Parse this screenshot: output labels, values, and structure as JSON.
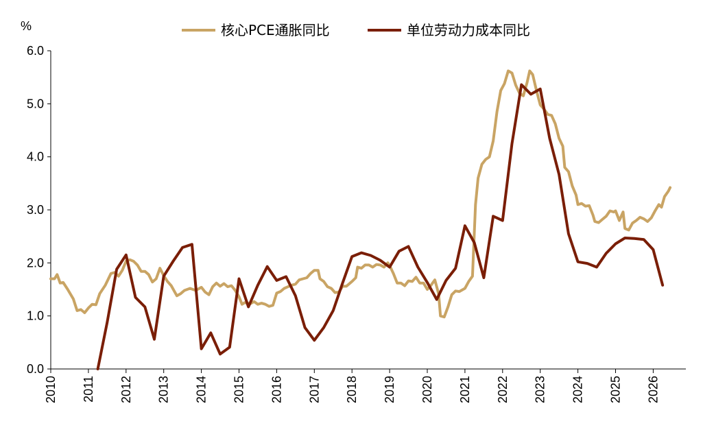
{
  "chart_data": {
    "type": "line",
    "title": "",
    "xlabel": "",
    "ylabel": "%",
    "ylim": [
      0,
      6
    ],
    "xlim": [
      2010,
      2026.45
    ],
    "y_ticks": [
      "0.0",
      "1.0",
      "2.0",
      "3.0",
      "4.0",
      "5.0",
      "6.0"
    ],
    "x_ticks": [
      "2010",
      "2011",
      "2012",
      "2013",
      "2014",
      "2015",
      "2016",
      "2017",
      "2018",
      "2019",
      "2020",
      "2021",
      "2022",
      "2023",
      "2024",
      "2025",
      "2026"
    ],
    "grid": false,
    "legend_position": "top-center",
    "series": [
      {
        "name": "核心PCE通胀同比",
        "color": "#c9a464",
        "points": [
          [
            2010.0,
            1.7
          ],
          [
            2010.1,
            1.7
          ],
          [
            2010.17,
            1.78
          ],
          [
            2010.25,
            1.62
          ],
          [
            2010.33,
            1.63
          ],
          [
            2010.45,
            1.5
          ],
          [
            2010.6,
            1.32
          ],
          [
            2010.7,
            1.1
          ],
          [
            2010.8,
            1.12
          ],
          [
            2010.9,
            1.06
          ],
          [
            2011.0,
            1.15
          ],
          [
            2011.1,
            1.22
          ],
          [
            2011.2,
            1.21
          ],
          [
            2011.3,
            1.42
          ],
          [
            2011.45,
            1.58
          ],
          [
            2011.6,
            1.8
          ],
          [
            2011.7,
            1.82
          ],
          [
            2011.8,
            1.75
          ],
          [
            2011.9,
            1.86
          ],
          [
            2012.0,
            2.03
          ],
          [
            2012.1,
            2.06
          ],
          [
            2012.2,
            2.03
          ],
          [
            2012.3,
            1.96
          ],
          [
            2012.4,
            1.84
          ],
          [
            2012.5,
            1.84
          ],
          [
            2012.6,
            1.78
          ],
          [
            2012.7,
            1.64
          ],
          [
            2012.8,
            1.7
          ],
          [
            2012.9,
            1.9
          ],
          [
            2013.0,
            1.76
          ],
          [
            2013.1,
            1.65
          ],
          [
            2013.2,
            1.57
          ],
          [
            2013.35,
            1.38
          ],
          [
            2013.45,
            1.42
          ],
          [
            2013.55,
            1.48
          ],
          [
            2013.7,
            1.52
          ],
          [
            2013.85,
            1.48
          ],
          [
            2014.0,
            1.54
          ],
          [
            2014.1,
            1.45
          ],
          [
            2014.2,
            1.4
          ],
          [
            2014.3,
            1.55
          ],
          [
            2014.4,
            1.62
          ],
          [
            2014.5,
            1.56
          ],
          [
            2014.6,
            1.61
          ],
          [
            2014.7,
            1.55
          ],
          [
            2014.8,
            1.57
          ],
          [
            2014.9,
            1.48
          ],
          [
            2015.0,
            1.36
          ],
          [
            2015.08,
            1.22
          ],
          [
            2015.15,
            1.25
          ],
          [
            2015.3,
            1.23
          ],
          [
            2015.4,
            1.27
          ],
          [
            2015.5,
            1.22
          ],
          [
            2015.6,
            1.24
          ],
          [
            2015.7,
            1.22
          ],
          [
            2015.8,
            1.18
          ],
          [
            2015.9,
            1.2
          ],
          [
            2016.0,
            1.43
          ],
          [
            2016.1,
            1.46
          ],
          [
            2016.2,
            1.52
          ],
          [
            2016.3,
            1.55
          ],
          [
            2016.4,
            1.58
          ],
          [
            2016.5,
            1.6
          ],
          [
            2016.6,
            1.68
          ],
          [
            2016.7,
            1.7
          ],
          [
            2016.8,
            1.72
          ],
          [
            2016.9,
            1.8
          ],
          [
            2017.0,
            1.86
          ],
          [
            2017.1,
            1.86
          ],
          [
            2017.15,
            1.7
          ],
          [
            2017.25,
            1.65
          ],
          [
            2017.35,
            1.55
          ],
          [
            2017.45,
            1.52
          ],
          [
            2017.55,
            1.44
          ],
          [
            2017.65,
            1.45
          ],
          [
            2017.75,
            1.56
          ],
          [
            2017.85,
            1.56
          ],
          [
            2017.95,
            1.62
          ],
          [
            2018.0,
            1.65
          ],
          [
            2018.1,
            1.72
          ],
          [
            2018.15,
            1.92
          ],
          [
            2018.25,
            1.9
          ],
          [
            2018.35,
            1.96
          ],
          [
            2018.45,
            1.96
          ],
          [
            2018.55,
            1.92
          ],
          [
            2018.65,
            1.97
          ],
          [
            2018.75,
            1.96
          ],
          [
            2018.85,
            1.92
          ],
          [
            2018.95,
            2.0
          ],
          [
            2019.0,
            1.95
          ],
          [
            2019.1,
            1.8
          ],
          [
            2019.2,
            1.62
          ],
          [
            2019.3,
            1.62
          ],
          [
            2019.4,
            1.57
          ],
          [
            2019.5,
            1.66
          ],
          [
            2019.6,
            1.65
          ],
          [
            2019.7,
            1.73
          ],
          [
            2019.8,
            1.62
          ],
          [
            2019.9,
            1.62
          ],
          [
            2020.0,
            1.5
          ],
          [
            2020.1,
            1.58
          ],
          [
            2020.2,
            1.68
          ],
          [
            2020.3,
            1.42
          ],
          [
            2020.35,
            1.0
          ],
          [
            2020.45,
            0.98
          ],
          [
            2020.55,
            1.17
          ],
          [
            2020.65,
            1.4
          ],
          [
            2020.75,
            1.47
          ],
          [
            2020.85,
            1.46
          ],
          [
            2021.0,
            1.52
          ],
          [
            2021.1,
            1.65
          ],
          [
            2021.2,
            1.75
          ],
          [
            2021.28,
            3.1
          ],
          [
            2021.35,
            3.6
          ],
          [
            2021.45,
            3.86
          ],
          [
            2021.55,
            3.95
          ],
          [
            2021.65,
            4.0
          ],
          [
            2021.75,
            4.3
          ],
          [
            2021.85,
            4.85
          ],
          [
            2021.95,
            5.25
          ],
          [
            2022.05,
            5.38
          ],
          [
            2022.15,
            5.62
          ],
          [
            2022.25,
            5.58
          ],
          [
            2022.35,
            5.35
          ],
          [
            2022.45,
            5.2
          ],
          [
            2022.55,
            5.15
          ],
          [
            2022.65,
            5.4
          ],
          [
            2022.72,
            5.62
          ],
          [
            2022.8,
            5.55
          ],
          [
            2022.9,
            5.25
          ],
          [
            2023.0,
            4.98
          ],
          [
            2023.1,
            4.9
          ],
          [
            2023.2,
            4.8
          ],
          [
            2023.3,
            4.78
          ],
          [
            2023.4,
            4.62
          ],
          [
            2023.5,
            4.35
          ],
          [
            2023.6,
            4.2
          ],
          [
            2023.65,
            3.8
          ],
          [
            2023.75,
            3.72
          ],
          [
            2023.85,
            3.45
          ],
          [
            2023.95,
            3.28
          ],
          [
            2024.0,
            3.1
          ],
          [
            2024.1,
            3.12
          ],
          [
            2024.2,
            3.07
          ],
          [
            2024.3,
            3.08
          ],
          [
            2024.4,
            2.9
          ],
          [
            2024.45,
            2.78
          ],
          [
            2024.55,
            2.76
          ],
          [
            2024.65,
            2.82
          ],
          [
            2024.75,
            2.88
          ],
          [
            2024.85,
            2.98
          ],
          [
            2024.95,
            2.96
          ],
          [
            2025.0,
            2.98
          ],
          [
            2025.1,
            2.8
          ],
          [
            2025.2,
            2.96
          ],
          [
            2025.25,
            2.65
          ],
          [
            2025.35,
            2.62
          ],
          [
            2025.45,
            2.75
          ],
          [
            2025.55,
            2.8
          ],
          [
            2025.65,
            2.86
          ],
          [
            2025.75,
            2.83
          ],
          [
            2025.85,
            2.78
          ],
          [
            2025.95,
            2.85
          ],
          [
            2026.05,
            2.98
          ],
          [
            2026.15,
            3.1
          ],
          [
            2026.22,
            3.05
          ],
          [
            2026.3,
            3.25
          ],
          [
            2026.4,
            3.35
          ],
          [
            2026.45,
            3.42
          ]
        ]
      },
      {
        "name": "单位劳动力成本同比",
        "color": "#7a1e06",
        "points": [
          [
            2011.25,
            0.0
          ],
          [
            2011.5,
            0.88
          ],
          [
            2011.75,
            1.88
          ],
          [
            2012.0,
            2.15
          ],
          [
            2012.25,
            1.35
          ],
          [
            2012.5,
            1.17
          ],
          [
            2012.75,
            0.56
          ],
          [
            2013.0,
            1.75
          ],
          [
            2013.25,
            2.03
          ],
          [
            2013.5,
            2.29
          ],
          [
            2013.75,
            2.35
          ],
          [
            2014.0,
            0.38
          ],
          [
            2014.25,
            0.68
          ],
          [
            2014.5,
            0.28
          ],
          [
            2014.75,
            0.41
          ],
          [
            2015.0,
            1.7
          ],
          [
            2015.25,
            1.17
          ],
          [
            2015.5,
            1.58
          ],
          [
            2015.75,
            1.93
          ],
          [
            2016.0,
            1.67
          ],
          [
            2016.25,
            1.74
          ],
          [
            2016.5,
            1.38
          ],
          [
            2016.75,
            0.78
          ],
          [
            2017.0,
            0.54
          ],
          [
            2017.25,
            0.78
          ],
          [
            2017.5,
            1.1
          ],
          [
            2017.75,
            1.62
          ],
          [
            2018.0,
            2.12
          ],
          [
            2018.25,
            2.19
          ],
          [
            2018.5,
            2.14
          ],
          [
            2018.75,
            2.05
          ],
          [
            2019.0,
            1.92
          ],
          [
            2019.25,
            2.22
          ],
          [
            2019.5,
            2.31
          ],
          [
            2019.75,
            1.92
          ],
          [
            2020.0,
            1.63
          ],
          [
            2020.25,
            1.31
          ],
          [
            2020.5,
            1.67
          ],
          [
            2020.75,
            1.9
          ],
          [
            2021.0,
            2.7
          ],
          [
            2021.25,
            2.38
          ],
          [
            2021.5,
            1.72
          ],
          [
            2021.75,
            2.88
          ],
          [
            2022.0,
            2.8
          ],
          [
            2022.25,
            4.25
          ],
          [
            2022.5,
            5.36
          ],
          [
            2022.75,
            5.18
          ],
          [
            2023.0,
            5.28
          ],
          [
            2023.25,
            4.35
          ],
          [
            2023.5,
            3.67
          ],
          [
            2023.75,
            2.55
          ],
          [
            2024.0,
            2.02
          ],
          [
            2024.25,
            1.99
          ],
          [
            2024.5,
            1.92
          ],
          [
            2024.75,
            2.18
          ],
          [
            2025.0,
            2.36
          ],
          [
            2025.25,
            2.47
          ],
          [
            2025.5,
            2.46
          ],
          [
            2025.75,
            2.44
          ],
          [
            2026.0,
            2.25
          ],
          [
            2026.25,
            1.58
          ]
        ]
      }
    ]
  }
}
